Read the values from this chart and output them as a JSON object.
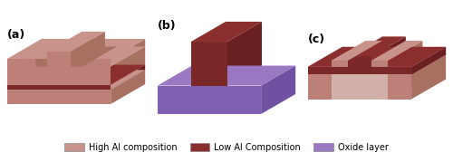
{
  "colors": {
    "high_al_top": "#C8938A",
    "high_al_side": "#A87060",
    "high_al_front": "#BC8078",
    "high_al_light": "#D4A098",
    "low_al_top": "#8B2E2E",
    "low_al_side": "#6A2020",
    "low_al_front": "#7A2828",
    "oxide_top": "#9B78C2",
    "oxide_side": "#7050A0",
    "oxide_front": "#8060B0",
    "bg": "#FFFFFF"
  },
  "legend": [
    {
      "label": "High Al composition",
      "color": "#C8938A"
    },
    {
      "label": "Low Al Composition",
      "color": "#8B2E2E"
    },
    {
      "label": "Oxide layer",
      "color": "#9B78C2"
    }
  ],
  "panel_labels": [
    "(a)",
    "(b)",
    "(c)"
  ]
}
